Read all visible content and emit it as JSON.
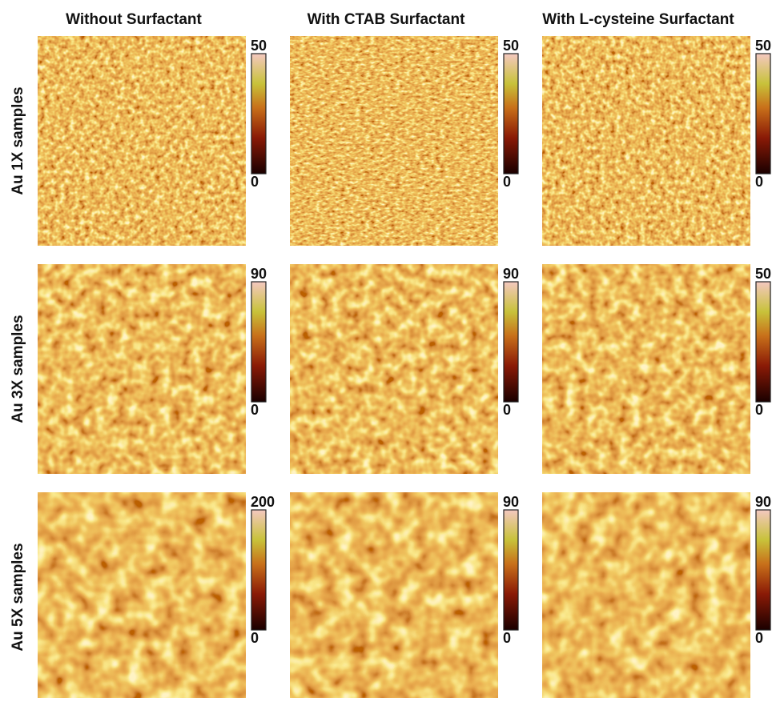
{
  "figure": {
    "columns": [
      "Without Surfactant",
      "With CTAB Surfactant",
      "With L-cysteine Surfactant"
    ],
    "rows": [
      "Au 1X samples",
      "Au 3X samples",
      "Au 5X samples"
    ],
    "panels": [
      [
        {
          "max": 50,
          "min": 0
        },
        {
          "max": 50,
          "min": 0
        },
        {
          "max": 50,
          "min": 0
        }
      ],
      [
        {
          "max": 90,
          "min": 0
        },
        {
          "max": 90,
          "min": 0
        },
        {
          "max": 50,
          "min": 0
        }
      ],
      [
        {
          "max": 200,
          "min": 0
        },
        {
          "max": 90,
          "min": 0
        },
        {
          "max": 90,
          "min": 0
        }
      ]
    ]
  }
}
